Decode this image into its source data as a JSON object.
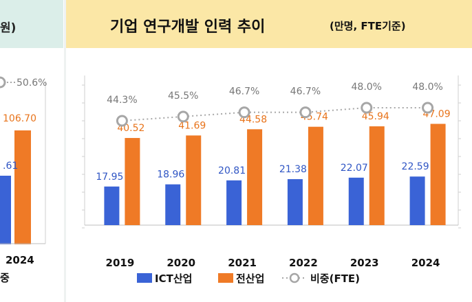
{
  "left_panel": {
    "header_text": "원)",
    "pct_label": "50.6%",
    "bar_labels": [
      "106.70",
      ".61"
    ],
    "year_label": "2024",
    "bottom_fragment": "중"
  },
  "header": {
    "title": "기업 연구개발 인력 추이",
    "subtitle": "(만명, FTE기준)"
  },
  "colors": {
    "ict": "#3a63d6",
    "all": "#ef7a26",
    "ratio": "#a6a6a6",
    "header_bg": "#fbe7a6"
  },
  "chart_data": {
    "type": "bar",
    "categories": [
      "2019",
      "2020",
      "2021",
      "2022",
      "2023",
      "2024"
    ],
    "series": [
      {
        "name": "ICT산업",
        "values": [
          17.95,
          18.96,
          20.81,
          21.38,
          22.07,
          22.59
        ]
      },
      {
        "name": "전산업",
        "values": [
          40.52,
          41.69,
          44.58,
          45.74,
          45.94,
          47.09
        ]
      }
    ],
    "line_series": {
      "name": "비중(FTE)",
      "values": [
        44.3,
        45.5,
        46.7,
        46.7,
        48.0,
        48.0
      ],
      "labels": [
        "44.3%",
        "45.5%",
        "46.7%",
        "46.7%",
        "48.0%",
        "48.0%"
      ]
    },
    "ylim": [
      0,
      60
    ],
    "legend_position": "bottom",
    "grid": false
  }
}
